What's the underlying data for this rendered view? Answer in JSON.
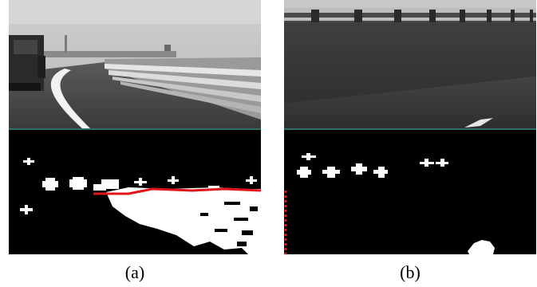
{
  "figure": {
    "panels": [
      {
        "id": "a",
        "caption": "(a)"
      },
      {
        "id": "b",
        "caption": "(b)"
      }
    ]
  },
  "colors": {
    "divider": "#2f6f6a",
    "detection_line": "#e0141a",
    "mask_background": "#000000",
    "mask_foreground": "#ffffff"
  }
}
